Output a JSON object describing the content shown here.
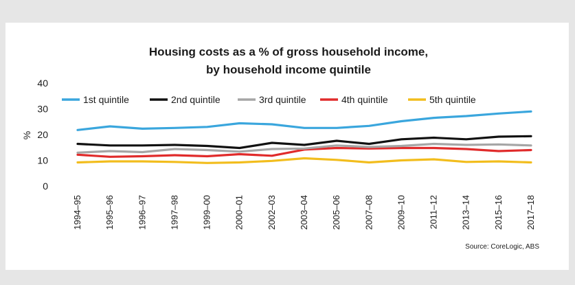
{
  "chart_data": {
    "type": "line",
    "title_lines": [
      "Housing costs as a % of gross household income,",
      "by household income quintile"
    ],
    "ylabel": "%",
    "xlabel": "",
    "ylim": [
      0,
      40
    ],
    "yticks": [
      "0",
      "10",
      "20",
      "30",
      "40"
    ],
    "grid": false,
    "legend_position": "top",
    "categories": [
      "1994–95",
      "1995–96",
      "1996–97",
      "1997–98",
      "1999–00",
      "2000–01",
      "2002–03",
      "2003–04",
      "2005–06",
      "2007–08",
      "2009–10",
      "2011–12",
      "2013–14",
      "2015–16",
      "2017–18"
    ],
    "series": [
      {
        "name": "1st quintile",
        "color": "#3aa6dd",
        "values": [
          21.8,
          23.2,
          22.3,
          22.6,
          23.0,
          24.4,
          24.0,
          22.6,
          22.6,
          23.4,
          25.2,
          26.5,
          27.2,
          28.2,
          29.0
        ]
      },
      {
        "name": "2nd quintile",
        "color": "#111111",
        "values": [
          16.4,
          15.8,
          15.8,
          16.0,
          15.6,
          14.8,
          16.8,
          16.0,
          17.6,
          16.4,
          18.2,
          18.8,
          18.2,
          19.2,
          19.4
        ]
      },
      {
        "name": "3rd quintile",
        "color": "#a6a6a6",
        "values": [
          13.0,
          13.6,
          13.2,
          14.4,
          14.0,
          13.4,
          14.4,
          14.6,
          15.8,
          15.2,
          15.6,
          16.4,
          16.0,
          16.2,
          15.8
        ]
      },
      {
        "name": "4th quintile",
        "color": "#e02b2b",
        "values": [
          12.2,
          11.4,
          11.6,
          12.0,
          11.6,
          12.4,
          11.8,
          14.2,
          14.8,
          14.6,
          14.8,
          14.8,
          14.4,
          13.6,
          14.0
        ]
      },
      {
        "name": "5th quintile",
        "color": "#f2bd1d",
        "values": [
          9.2,
          9.6,
          9.6,
          9.4,
          9.0,
          9.2,
          9.8,
          10.8,
          10.2,
          9.2,
          10.0,
          10.4,
          9.4,
          9.6,
          9.2
        ]
      }
    ],
    "source": "Source: CoreLogic, ABS"
  }
}
